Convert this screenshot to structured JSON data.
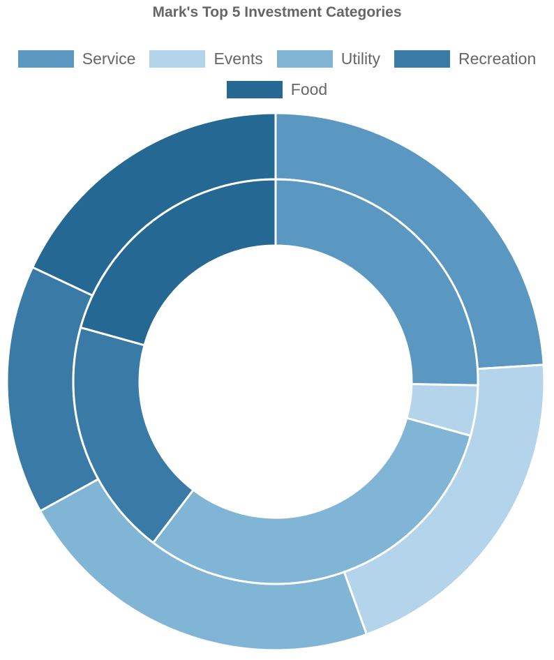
{
  "chart_data": {
    "type": "doughnut",
    "title": "Mark's Top 5 Investment Categories",
    "categories": [
      "Service",
      "Events",
      "Utility",
      "Recreation",
      "Food"
    ],
    "colors": [
      "#5b98c1",
      "#b3d4ea",
      "#81b5d6",
      "#3a7aa6",
      "#256894"
    ],
    "series": [
      {
        "values": [
          24.0,
          20.5,
          22.5,
          15.0,
          18.0
        ]
      },
      {
        "values": [
          22.0,
          3.5,
          27.0,
          16.5,
          18.0
        ]
      }
    ],
    "legend_position": "top"
  }
}
